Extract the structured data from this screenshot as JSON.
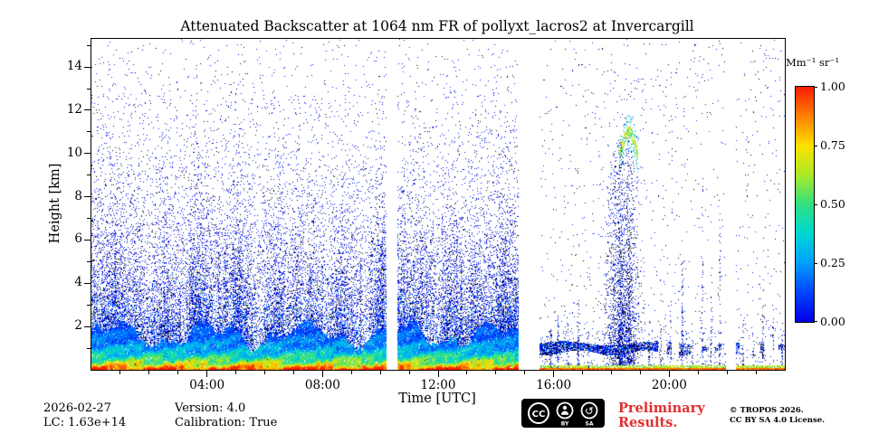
{
  "footer": {
    "date": "2026-02-27",
    "lc": "LC: 1.63e+14",
    "version": "Version: 4.0",
    "calibration": "Calibration: True",
    "preliminary_line1": "Preliminary",
    "preliminary_line2": "Results.",
    "copyright": "© TROPOS 2026.",
    "license": "CC BY SA 4.0 License."
  },
  "colors": {
    "preliminary_red": "#e03030",
    "background": "#ffffff",
    "axis": "#000000"
  },
  "cc_badge": {
    "cc": "CC",
    "by": "BY",
    "sa": "SA"
  },
  "chart_data": {
    "type": "heatmap",
    "title": "Attenuated Backscatter at 1064 nm FR of pollyxt_lacros2 at Invercargill",
    "xlabel": "Time [UTC]",
    "ylabel": "Height [km]",
    "x_range_hours": [
      0,
      24
    ],
    "y_range_km": [
      0,
      15.3
    ],
    "x_ticks": [
      {
        "hour": 4,
        "label": "04:00"
      },
      {
        "hour": 8,
        "label": "08:00"
      },
      {
        "hour": 12,
        "label": "12:00"
      },
      {
        "hour": 16,
        "label": "16:00"
      },
      {
        "hour": 20,
        "label": "20:00"
      }
    ],
    "y_ticks": [
      2,
      4,
      6,
      8,
      10,
      12,
      14
    ],
    "grid": false,
    "colorbar": {
      "label": "Mm⁻¹ sr⁻¹",
      "min": 0.0,
      "max": 1.0,
      "ticks": [
        {
          "v": 1.0,
          "label": "1.00"
        },
        {
          "v": 0.75,
          "label": "0.75"
        },
        {
          "v": 0.5,
          "label": "0.50"
        },
        {
          "v": 0.25,
          "label": "0.25"
        },
        {
          "v": 0.0,
          "label": "0.00"
        }
      ],
      "colormap": "jet-like (blue→cyan→green→yellow→orange→red)"
    },
    "features": [
      "Strong near-surface backscatter layer (red/orange/yellow, up to 1.0 Mm-1 sr-1) below ~1.5 km from 00:00 to ~15:00 UTC",
      "Dense low-value (blue) noise speckle up to ~10 km during 00:00-15:00, density decreasing with height",
      "Many vertical cloud/precipitation streaks reaching 2-7 km, clustered 11:30-14:45",
      "Data gaps (white columns) at ~10:13-10:35, ~14:48-15:30 and ~21:57-22:18 UTC",
      "Cleaner background after ~15:30 with a thin dark cloud band at 0.8-1.2 km",
      "Deep plume 17:35-19:05 UTC reaching ~11 km with a green/yellow enhanced-backscatter arc near 10-11 km",
      "Thin red surface echo persists along the bottom for the whole day"
    ],
    "render": {
      "seed": 42,
      "t_max": 24,
      "h_max": 15.3,
      "dense_until": 14.9,
      "gaps": [
        [
          10.22,
          10.58
        ],
        [
          14.8,
          15.5
        ],
        [
          21.95,
          22.3
        ]
      ],
      "colormap_stops": [
        [
          0.0,
          [
            0,
            0,
            230
          ]
        ],
        [
          0.125,
          [
            0,
            70,
            255
          ]
        ],
        [
          0.25,
          [
            0,
            160,
            255
          ]
        ],
        [
          0.375,
          [
            0,
            215,
            210
          ]
        ],
        [
          0.5,
          [
            50,
            225,
            130
          ]
        ],
        [
          0.625,
          [
            170,
            235,
            40
          ]
        ],
        [
          0.75,
          [
            255,
            225,
            0
          ]
        ],
        [
          0.875,
          [
            255,
            130,
            0
          ]
        ],
        [
          1.0,
          [
            250,
            30,
            0
          ]
        ]
      ],
      "streaks": {
        "count": 95,
        "t_max": 14.8,
        "tall_count": 20,
        "tall_t0": 11.3,
        "tall_t1": 14.7
      },
      "sparse_streaks": [
        [
          15.9,
          0.06,
          1.9,
          0.8
        ],
        [
          16.15,
          0.05,
          2.6,
          0.7
        ],
        [
          16.5,
          0.04,
          2.2,
          0.65
        ],
        [
          16.85,
          0.05,
          3.1,
          0.6
        ],
        [
          17.2,
          0.04,
          2.0,
          0.6
        ],
        [
          19.3,
          0.04,
          2.4,
          0.55
        ],
        [
          19.7,
          0.05,
          2.0,
          0.5
        ],
        [
          20.05,
          0.04,
          3.2,
          0.55
        ],
        [
          20.45,
          0.05,
          5.0,
          0.5
        ],
        [
          20.8,
          0.04,
          2.2,
          0.5
        ],
        [
          21.15,
          0.04,
          9.0,
          0.3
        ],
        [
          21.45,
          0.03,
          3.5,
          0.45
        ],
        [
          21.75,
          0.04,
          7.5,
          0.3
        ],
        [
          22.55,
          0.05,
          2.4,
          0.55
        ],
        [
          22.9,
          0.04,
          2.0,
          0.5
        ],
        [
          23.25,
          0.05,
          3.8,
          0.5
        ],
        [
          23.6,
          0.04,
          2.6,
          0.5
        ],
        [
          23.9,
          0.04,
          2.0,
          0.5
        ]
      ],
      "band": {
        "lo": 0.78,
        "hi": 1.22,
        "strong_until": 19.6,
        "gate_late": 0.55,
        "density_strong": 0.8,
        "density_late": 0.55
      },
      "plume": {
        "t0": 17.55,
        "t1": 19.15,
        "center": 18.4,
        "sigma": 0.45,
        "hmax": 10.8,
        "density": 0.75,
        "arc": {
          "t0": 18.28,
          "t1": 18.92,
          "h0": 9.85,
          "amp": 1.15,
          "thick": 0.27
        }
      }
    }
  }
}
